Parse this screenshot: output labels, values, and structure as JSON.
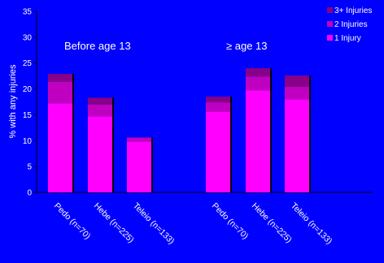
{
  "chart_data": {
    "type": "bar",
    "stacked": true,
    "ylabel": "% with any injuries",
    "ylim": [
      0,
      35
    ],
    "yticks": [
      0,
      5,
      10,
      15,
      20,
      25,
      30,
      35
    ],
    "grid": false,
    "legend_position": "top-right",
    "groups": [
      {
        "label": "Before age 13",
        "categories": [
          "Pedo (n=70)",
          "Hebe (n=225)",
          "Teleio (n=133)"
        ]
      },
      {
        "label": "≥ age 13",
        "categories": [
          "Pedo (n=70)",
          "Hebe (n=225)",
          "Teleio (n=133)"
        ]
      }
    ],
    "series": [
      {
        "name": "1 Injury",
        "color": "#FF00FF",
        "values": [
          17.2,
          14.7,
          9.8,
          15.6,
          19.7,
          18.0
        ]
      },
      {
        "name": "2 Injuries",
        "color": "#C000C0",
        "values": [
          4.2,
          2.3,
          0.8,
          1.8,
          2.7,
          2.4
        ]
      },
      {
        "name": "3+ Injuries",
        "color": "#880088",
        "values": [
          1.5,
          1.3,
          0.0,
          1.1,
          1.6,
          2.2
        ]
      }
    ],
    "legend_order": [
      "3+ Injuries",
      "2 Injuries",
      "1 Injury"
    ]
  }
}
